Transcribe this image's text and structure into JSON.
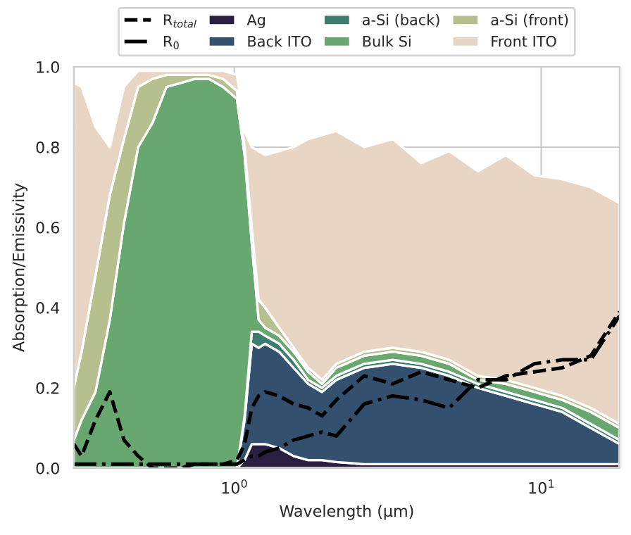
{
  "chart_data": {
    "type": "area",
    "stacked": true,
    "xlabel": "Wavelength (μm)",
    "ylabel": "Absorption/Emissivity",
    "x": [
      0.3,
      0.318,
      0.353,
      0.393,
      0.437,
      0.486,
      0.541,
      0.601,
      0.668,
      0.743,
      0.826,
      0.919,
      1.02,
      1.08,
      1.14,
      1.2,
      1.26,
      1.4,
      1.56,
      1.74,
      1.93,
      2.15,
      2.65,
      3.28,
      4.06,
      5.01,
      6.21,
      7.67,
      9.48,
      11.7,
      14.5,
      18
    ],
    "series": [
      {
        "name": "Ag",
        "color": "#2a1f40",
        "values": [
          0,
          0,
          0,
          0,
          0,
          0,
          0,
          0,
          0,
          0,
          0,
          0,
          0,
          0.02,
          0.06,
          0.06,
          0.06,
          0.05,
          0.03,
          0.02,
          0.02,
          0.015,
          0.01,
          0.01,
          0.01,
          0.01,
          0.01,
          0.01,
          0.01,
          0.01,
          0.01,
          0.01
        ]
      },
      {
        "name": "Back ITO",
        "color": "#33506e",
        "values": [
          0,
          0,
          0,
          0,
          0,
          0,
          0,
          0,
          0,
          0,
          0,
          0,
          0,
          0.1,
          0.25,
          0.24,
          0.25,
          0.24,
          0.22,
          0.19,
          0.17,
          0.205,
          0.24,
          0.25,
          0.24,
          0.22,
          0.19,
          0.17,
          0.15,
          0.13,
          0.09,
          0.05
        ]
      },
      {
        "name": "a-Si (back)",
        "color": "#3a7d6e",
        "values": [
          0,
          0,
          0,
          0,
          0,
          0,
          0,
          0,
          0,
          0,
          0,
          0,
          0,
          0.01,
          0.03,
          0.04,
          0.02,
          0.02,
          0.02,
          0.01,
          0.01,
          0.01,
          0.01,
          0.01,
          0.01,
          0.01,
          0.01,
          0.01,
          0.01,
          0.01,
          0.01,
          0.01
        ]
      },
      {
        "name": "Bulk Si",
        "color": "#68a870",
        "values": [
          0.07,
          0.12,
          0.19,
          0.37,
          0.61,
          0.8,
          0.86,
          0.95,
          0.96,
          0.97,
          0.97,
          0.95,
          0.92,
          0.65,
          0.22,
          0.03,
          0.02,
          0.02,
          0.02,
          0.02,
          0.01,
          0.02,
          0.02,
          0.02,
          0.02,
          0.02,
          0.01,
          0.02,
          0.02,
          0.02,
          0.03,
          0.03
        ]
      },
      {
        "name": "a-Si (front)",
        "color": "#b5c08e",
        "values": [
          0.13,
          0.17,
          0.29,
          0.31,
          0.21,
          0.15,
          0.11,
          0.03,
          0.02,
          0.01,
          0.01,
          0.02,
          0.02,
          0.02,
          0.04,
          0.05,
          0.05,
          0.02,
          0.01,
          0.01,
          0.01,
          0.01,
          0.01,
          0.01,
          0.01,
          0.01,
          0.01,
          0.01,
          0.01,
          0.01,
          0.01,
          0.01
        ]
      },
      {
        "name": "Front ITO",
        "color": "#e8d5c4",
        "values": [
          0.76,
          0.66,
          0.37,
          0.12,
          0.13,
          0.04,
          0.02,
          0.01,
          0.01,
          0.01,
          0.01,
          0.02,
          0.04,
          0.04,
          0.2,
          0.37,
          0.38,
          0.44,
          0.5,
          0.57,
          0.61,
          0.58,
          0.51,
          0.52,
          0.47,
          0.52,
          0.51,
          0.56,
          0.53,
          0.54,
          0.55,
          0.55
        ]
      },
      {
        "name": "R$_{total}$",
        "type": "line",
        "line_style": "dashed",
        "color": "#000000",
        "values": [
          0.06,
          0.03,
          0.12,
          0.19,
          0.07,
          0.03,
          0.0,
          0.0,
          0.0,
          0.01,
          0.01,
          0.01,
          0.02,
          0.06,
          0.15,
          0.18,
          0.19,
          0.18,
          0.16,
          0.15,
          0.13,
          0.17,
          0.23,
          0.21,
          0.24,
          0.22,
          0.2,
          0.23,
          0.24,
          0.25,
          0.28,
          0.39
        ]
      },
      {
        "name": "R$_{0}$",
        "type": "line",
        "line_style": "dashdot",
        "color": "#000000",
        "values": [
          0.01,
          0.01,
          0.01,
          0.01,
          0.01,
          0.01,
          0.01,
          0.01,
          0.01,
          0.01,
          0.01,
          0.01,
          0.01,
          0.02,
          0.03,
          0.03,
          0.04,
          0.05,
          0.07,
          0.08,
          0.09,
          0.08,
          0.16,
          0.18,
          0.17,
          0.15,
          0.22,
          0.22,
          0.26,
          0.27,
          0.27,
          0.38
        ]
      }
    ],
    "log": "x",
    "xlim": [
      0.3,
      18
    ],
    "xticks": [
      {
        "value": 1,
        "label": "10$^{0}$"
      },
      {
        "value": 10,
        "label": "10$^{1}$"
      }
    ],
    "ylim": [
      0,
      1
    ],
    "yticks": [
      {
        "value": 0,
        "label": "0.0"
      },
      {
        "value": 0.2,
        "label": "0.2"
      },
      {
        "value": 0.4,
        "label": "0.4"
      },
      {
        "value": 0.6,
        "label": "0.6"
      },
      {
        "value": 0.8,
        "label": "0.8"
      },
      {
        "value": 1,
        "label": "1.0"
      }
    ],
    "grid": true,
    "legend": "top"
  }
}
